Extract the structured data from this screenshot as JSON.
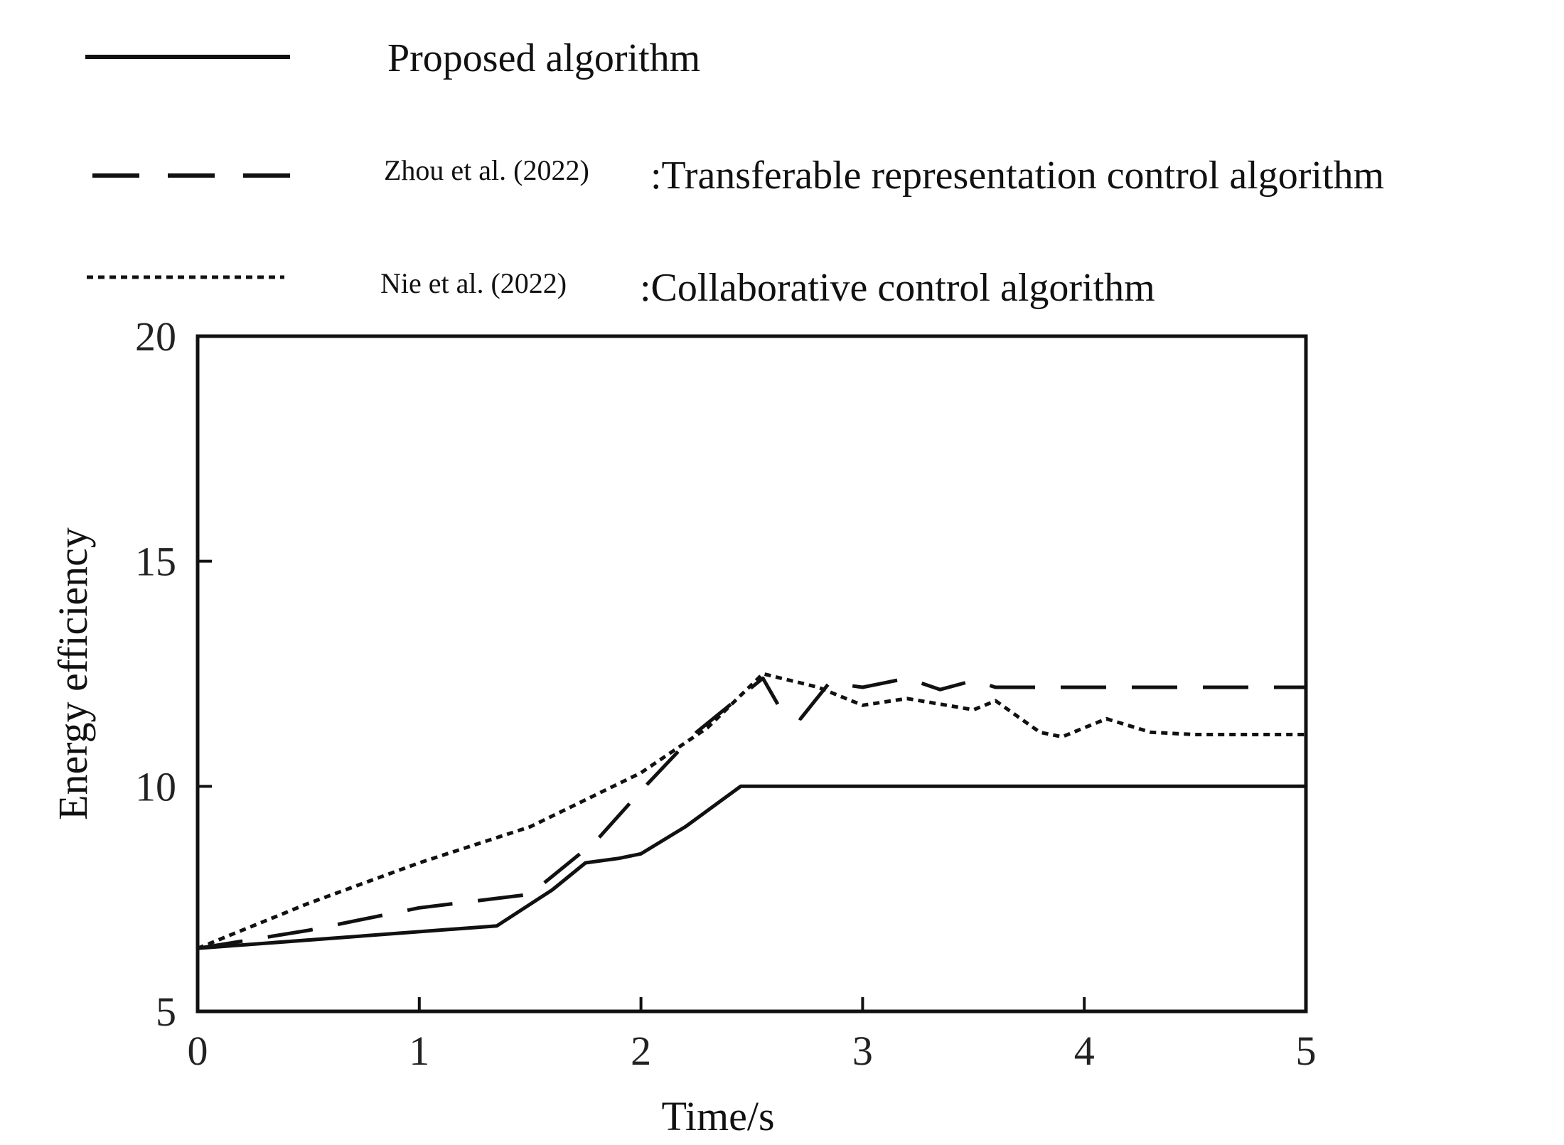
{
  "chart_data": {
    "type": "line",
    "xlabel": "Time/s",
    "ylabel": "Energy efficiency",
    "xlim": [
      0,
      5
    ],
    "ylim": [
      5,
      20
    ],
    "xticks": [
      0,
      1,
      2,
      3,
      4,
      5
    ],
    "yticks": [
      5,
      10,
      15,
      20
    ],
    "grid": false,
    "legend_position": "top",
    "series": [
      {
        "name": "Proposed algorithm",
        "cite": "",
        "label": "Proposed algorithm",
        "style": "solid",
        "x": [
          0,
          1.35,
          1.6,
          1.75,
          1.9,
          2.0,
          2.2,
          2.45,
          5.0
        ],
        "y": [
          6.4,
          6.9,
          7.7,
          8.3,
          8.4,
          8.5,
          9.1,
          10.0,
          10.0
        ]
      },
      {
        "name": "Zhou et al. (2022):Transferable representation control algorithm",
        "cite": "Zhou et al. (2022)",
        "label": ":Transferable representation control algorithm",
        "style": "dashed",
        "x": [
          0,
          0.5,
          1.0,
          1.5,
          1.8,
          2.0,
          2.25,
          2.4,
          2.55,
          2.62,
          2.72,
          2.85,
          3.0,
          3.1,
          3.2,
          3.35,
          3.5,
          3.6,
          3.7,
          5.0
        ],
        "y": [
          6.4,
          6.8,
          7.3,
          7.6,
          8.8,
          9.9,
          11.2,
          11.8,
          12.4,
          11.8,
          11.5,
          12.3,
          12.2,
          12.3,
          12.4,
          12.15,
          12.35,
          12.2,
          12.2,
          12.2
        ]
      },
      {
        "name": "Nie et al. (2022):Collaborative control algorithm",
        "cite": "Nie et al. (2022)",
        "label": ":Collaborative control algorithm",
        "style": "dotted",
        "x": [
          0,
          0.5,
          1.0,
          1.5,
          2.0,
          2.3,
          2.55,
          2.8,
          3.0,
          3.2,
          3.5,
          3.6,
          3.8,
          3.9,
          4.1,
          4.3,
          4.5,
          5.0
        ],
        "y": [
          6.4,
          7.4,
          8.3,
          9.1,
          10.3,
          11.3,
          12.5,
          12.2,
          11.8,
          11.95,
          11.7,
          11.9,
          11.2,
          11.1,
          11.5,
          11.2,
          11.15,
          11.15
        ]
      }
    ]
  }
}
